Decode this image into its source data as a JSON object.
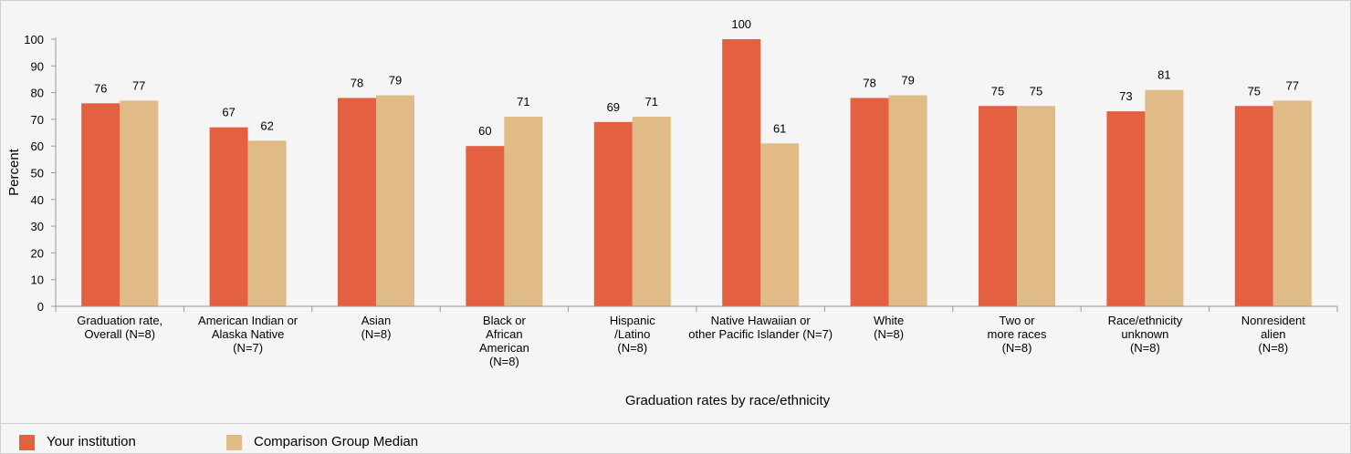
{
  "chart_data": {
    "type": "bar",
    "xlabel": "Graduation rates by race/ethnicity",
    "ylabel": "Percent",
    "ylim": [
      0,
      100
    ],
    "yticks": [
      0,
      10,
      20,
      30,
      40,
      50,
      60,
      70,
      80,
      90,
      100
    ],
    "grid": false,
    "legend_position": "bottom-left",
    "categories": [
      [
        "Graduation rate,",
        "Overall (N=8)"
      ],
      [
        "American Indian or",
        "Alaska Native",
        "(N=7)"
      ],
      [
        "Asian",
        "(N=8)"
      ],
      [
        "Black or",
        "African",
        "American",
        "(N=8)"
      ],
      [
        "Hispanic",
        "/Latino",
        "(N=8)"
      ],
      [
        "Native Hawaiian or",
        "other Pacific Islander (N=7)"
      ],
      [
        "White",
        "(N=8)"
      ],
      [
        "Two or",
        "more races",
        "(N=8)"
      ],
      [
        "Race/ethnicity",
        "unknown",
        "(N=8)"
      ],
      [
        "Nonresident",
        "alien",
        "(N=8)"
      ]
    ],
    "series": [
      {
        "name": "Your institution",
        "color": "#e36040",
        "values": [
          76,
          67,
          78,
          60,
          69,
          100,
          78,
          75,
          73,
          75
        ]
      },
      {
        "name": "Comparison Group Median",
        "color": "#e0ba87",
        "values": [
          77,
          62,
          79,
          71,
          71,
          61,
          79,
          75,
          81,
          77
        ]
      }
    ]
  }
}
